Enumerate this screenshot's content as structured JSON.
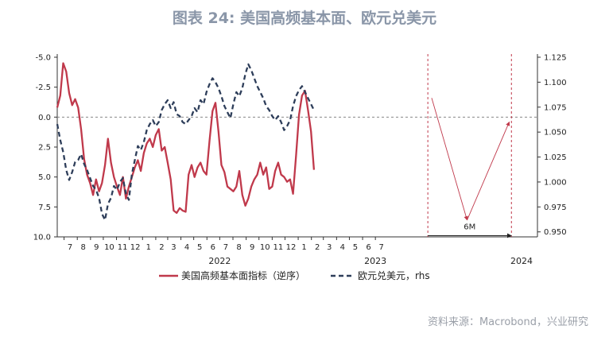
{
  "title": "图表 24: 美国高频基本面、欧元兑美元",
  "source": "资料来源：Macrobond，兴业研究",
  "chart_data": {
    "type": "line",
    "title": "图表 24: 美国高频基本面、欧元兑美元",
    "x_range": [
      "2021-06-15",
      "2024-07-15"
    ],
    "x_ticks": [
      {
        "date": "2021-07-01",
        "label": "7"
      },
      {
        "date": "2021-08-01",
        "label": "8"
      },
      {
        "date": "2021-09-01",
        "label": "9"
      },
      {
        "date": "2021-10-01",
        "label": "10"
      },
      {
        "date": "2021-11-01",
        "label": "11"
      },
      {
        "date": "2021-12-01",
        "label": "12"
      },
      {
        "date": "2022-01-01",
        "label": "1"
      },
      {
        "date": "2022-02-01",
        "label": "2"
      },
      {
        "date": "2022-03-01",
        "label": "3"
      },
      {
        "date": "2022-04-01",
        "label": "4"
      },
      {
        "date": "2022-05-01",
        "label": "5"
      },
      {
        "date": "2022-06-01",
        "label": "6"
      },
      {
        "date": "2022-07-01",
        "label": "7"
      },
      {
        "date": "2022-08-01",
        "label": "8"
      },
      {
        "date": "2022-09-01",
        "label": "9"
      },
      {
        "date": "2022-10-01",
        "label": "10"
      },
      {
        "date": "2022-11-01",
        "label": "11"
      },
      {
        "date": "2022-12-01",
        "label": "12"
      },
      {
        "date": "2023-01-01",
        "label": "1"
      },
      {
        "date": "2023-02-01",
        "label": "2"
      },
      {
        "date": "2023-03-01",
        "label": "3"
      },
      {
        "date": "2023-04-01",
        "label": "4"
      },
      {
        "date": "2023-05-01",
        "label": "5"
      },
      {
        "date": "2023-06-01",
        "label": "6"
      },
      {
        "date": "2023-07-01",
        "label": "7"
      }
    ],
    "year_labels": [
      {
        "date": "2022-01-01",
        "label": "2022"
      },
      {
        "date": "2023-01-01",
        "label": "2023"
      },
      {
        "date": "2024-01-01",
        "label": "2024"
      }
    ],
    "left_axis": {
      "range": [
        10.0,
        -5.0
      ],
      "reversed": true,
      "ticks": [
        "-5.0",
        "-2.5",
        "0.0",
        "2.5",
        "5.0",
        "7.5",
        "10.0"
      ],
      "tick_values": [
        -5,
        -2.5,
        0,
        2.5,
        5,
        7.5,
        10
      ]
    },
    "right_axis": {
      "range": [
        0.945,
        1.125
      ],
      "ticks": [
        "1.125",
        "1.100",
        "1.075",
        "1.050",
        "1.025",
        "1.000",
        "0.975",
        "0.950"
      ],
      "tick_values": [
        1.125,
        1.1,
        1.075,
        1.05,
        1.025,
        1.0,
        0.975,
        0.95
      ]
    },
    "zero_line": 0,
    "vertical_markers": [
      "2023-11-01",
      "2024-05-15"
    ],
    "annotation": {
      "label": "6M",
      "from": "2023-11-01",
      "to": "2024-05-15",
      "level": 9.9
    },
    "trend_arrows": [
      {
        "from": [
          "2023-11-10",
          -1.6
        ],
        "to": [
          "2024-02-01",
          8.6
        ]
      },
      {
        "from": [
          "2024-02-01",
          8.6
        ],
        "to": [
          "2024-05-10",
          0.4
        ]
      }
    ],
    "series": [
      {
        "name": "美国高频基本面指标（逆序）",
        "axis": "left",
        "color": "#c0394b",
        "style": "solid",
        "points": [
          [
            "2021-06-15",
            -0.8
          ],
          [
            "2021-06-22",
            -1.8
          ],
          [
            "2021-06-29",
            -4.5
          ],
          [
            "2021-07-06",
            -3.8
          ],
          [
            "2021-07-13",
            -2.0
          ],
          [
            "2021-07-20",
            -1.0
          ],
          [
            "2021-07-27",
            -1.5
          ],
          [
            "2021-08-03",
            -0.8
          ],
          [
            "2021-08-10",
            1.0
          ],
          [
            "2021-08-17",
            3.5
          ],
          [
            "2021-08-24",
            4.8
          ],
          [
            "2021-08-31",
            5.5
          ],
          [
            "2021-09-07",
            6.5
          ],
          [
            "2021-09-14",
            5.2
          ],
          [
            "2021-09-21",
            6.2
          ],
          [
            "2021-09-28",
            5.5
          ],
          [
            "2021-10-05",
            4.0
          ],
          [
            "2021-10-12",
            1.8
          ],
          [
            "2021-10-19",
            3.8
          ],
          [
            "2021-10-26",
            5.0
          ],
          [
            "2021-11-02",
            5.8
          ],
          [
            "2021-11-09",
            6.5
          ],
          [
            "2021-11-16",
            5.0
          ],
          [
            "2021-11-23",
            6.8
          ],
          [
            "2021-11-30",
            5.8
          ],
          [
            "2021-12-07",
            5.0
          ],
          [
            "2021-12-14",
            4.2
          ],
          [
            "2021-12-21",
            3.6
          ],
          [
            "2021-12-28",
            4.5
          ],
          [
            "2022-01-04",
            3.0
          ],
          [
            "2022-01-11",
            2.2
          ],
          [
            "2022-01-18",
            1.8
          ],
          [
            "2022-01-25",
            2.5
          ],
          [
            "2022-02-01",
            1.5
          ],
          [
            "2022-02-08",
            1.0
          ],
          [
            "2022-02-15",
            2.8
          ],
          [
            "2022-02-22",
            2.5
          ],
          [
            "2022-03-01",
            3.8
          ],
          [
            "2022-03-08",
            5.2
          ],
          [
            "2022-03-15",
            7.8
          ],
          [
            "2022-03-22",
            8.0
          ],
          [
            "2022-03-29",
            7.6
          ],
          [
            "2022-04-05",
            7.8
          ],
          [
            "2022-04-12",
            7.9
          ],
          [
            "2022-04-19",
            4.8
          ],
          [
            "2022-04-26",
            4.0
          ],
          [
            "2022-05-03",
            5.0
          ],
          [
            "2022-05-10",
            4.2
          ],
          [
            "2022-05-17",
            3.8
          ],
          [
            "2022-05-24",
            4.5
          ],
          [
            "2022-05-31",
            4.8
          ],
          [
            "2022-06-07",
            2.0
          ],
          [
            "2022-06-14",
            -0.5
          ],
          [
            "2022-06-21",
            -1.2
          ],
          [
            "2022-06-28",
            1.2
          ],
          [
            "2022-07-05",
            4.0
          ],
          [
            "2022-07-12",
            4.6
          ],
          [
            "2022-07-19",
            5.8
          ],
          [
            "2022-07-26",
            6.0
          ],
          [
            "2022-08-02",
            6.2
          ],
          [
            "2022-08-09",
            5.8
          ],
          [
            "2022-08-16",
            4.5
          ],
          [
            "2022-08-23",
            6.5
          ],
          [
            "2022-08-30",
            7.4
          ],
          [
            "2022-09-06",
            6.8
          ],
          [
            "2022-09-13",
            5.8
          ],
          [
            "2022-09-20",
            5.2
          ],
          [
            "2022-09-27",
            4.8
          ],
          [
            "2022-10-04",
            3.8
          ],
          [
            "2022-10-11",
            4.8
          ],
          [
            "2022-10-18",
            4.2
          ],
          [
            "2022-10-25",
            6.0
          ],
          [
            "2022-11-01",
            5.8
          ],
          [
            "2022-11-08",
            4.5
          ],
          [
            "2022-11-15",
            3.8
          ],
          [
            "2022-11-22",
            4.8
          ],
          [
            "2022-11-29",
            5.0
          ],
          [
            "2022-12-06",
            5.4
          ],
          [
            "2022-12-13",
            5.2
          ],
          [
            "2022-12-20",
            6.4
          ],
          [
            "2022-12-27",
            3.2
          ],
          [
            "2023-01-03",
            -0.2
          ],
          [
            "2023-01-10",
            -1.8
          ],
          [
            "2023-01-17",
            -2.2
          ],
          [
            "2023-01-24",
            -0.6
          ],
          [
            "2023-01-31",
            1.2
          ],
          [
            "2023-02-07",
            4.4
          ]
        ]
      },
      {
        "name": "欧元兑美元，rhs",
        "axis": "right",
        "color": "#2e3e5a",
        "style": "dashed",
        "points": [
          [
            "2021-06-15",
            1.058
          ],
          [
            "2021-06-22",
            1.042
          ],
          [
            "2021-06-29",
            1.03
          ],
          [
            "2021-07-06",
            1.012
          ],
          [
            "2021-07-13",
            1.002
          ],
          [
            "2021-07-20",
            1.01
          ],
          [
            "2021-07-27",
            1.02
          ],
          [
            "2021-08-03",
            1.022
          ],
          [
            "2021-08-10",
            1.028
          ],
          [
            "2021-08-17",
            1.018
          ],
          [
            "2021-08-24",
            1.012
          ],
          [
            "2021-08-31",
            1.004
          ],
          [
            "2021-09-07",
            0.996
          ],
          [
            "2021-09-14",
            0.992
          ],
          [
            "2021-09-21",
            0.984
          ],
          [
            "2021-09-28",
            0.968
          ],
          [
            "2021-10-05",
            0.962
          ],
          [
            "2021-10-12",
            0.978
          ],
          [
            "2021-10-19",
            0.984
          ],
          [
            "2021-10-26",
            0.996
          ],
          [
            "2021-11-02",
            0.992
          ],
          [
            "2021-11-09",
            1.0
          ],
          [
            "2021-11-16",
            1.004
          ],
          [
            "2021-11-23",
            0.988
          ],
          [
            "2021-11-30",
            0.982
          ],
          [
            "2021-12-07",
            1.008
          ],
          [
            "2021-12-14",
            1.022
          ],
          [
            "2021-12-21",
            1.036
          ],
          [
            "2021-12-28",
            1.032
          ],
          [
            "2022-01-04",
            1.04
          ],
          [
            "2022-01-11",
            1.052
          ],
          [
            "2022-01-18",
            1.058
          ],
          [
            "2022-01-25",
            1.062
          ],
          [
            "2022-02-01",
            1.056
          ],
          [
            "2022-02-08",
            1.06
          ],
          [
            "2022-02-15",
            1.072
          ],
          [
            "2022-02-22",
            1.078
          ],
          [
            "2022-03-01",
            1.082
          ],
          [
            "2022-03-08",
            1.074
          ],
          [
            "2022-03-15",
            1.08
          ],
          [
            "2022-03-22",
            1.068
          ],
          [
            "2022-03-29",
            1.066
          ],
          [
            "2022-04-05",
            1.06
          ],
          [
            "2022-04-12",
            1.058
          ],
          [
            "2022-04-19",
            1.062
          ],
          [
            "2022-04-26",
            1.066
          ],
          [
            "2022-05-03",
            1.074
          ],
          [
            "2022-05-10",
            1.07
          ],
          [
            "2022-05-17",
            1.082
          ],
          [
            "2022-05-24",
            1.078
          ],
          [
            "2022-05-31",
            1.09
          ],
          [
            "2022-06-07",
            1.098
          ],
          [
            "2022-06-14",
            1.104
          ],
          [
            "2022-06-21",
            1.1
          ],
          [
            "2022-06-28",
            1.094
          ],
          [
            "2022-07-05",
            1.086
          ],
          [
            "2022-07-12",
            1.076
          ],
          [
            "2022-07-19",
            1.07
          ],
          [
            "2022-07-26",
            1.064
          ],
          [
            "2022-08-02",
            1.078
          ],
          [
            "2022-08-09",
            1.09
          ],
          [
            "2022-08-16",
            1.086
          ],
          [
            "2022-08-23",
            1.094
          ],
          [
            "2022-08-30",
            1.108
          ],
          [
            "2022-09-06",
            1.118
          ],
          [
            "2022-09-13",
            1.112
          ],
          [
            "2022-09-20",
            1.104
          ],
          [
            "2022-09-27",
            1.096
          ],
          [
            "2022-10-04",
            1.09
          ],
          [
            "2022-10-11",
            1.084
          ],
          [
            "2022-10-18",
            1.076
          ],
          [
            "2022-10-25",
            1.072
          ],
          [
            "2022-11-01",
            1.066
          ],
          [
            "2022-11-08",
            1.062
          ],
          [
            "2022-11-15",
            1.066
          ],
          [
            "2022-11-22",
            1.06
          ],
          [
            "2022-11-29",
            1.052
          ],
          [
            "2022-12-06",
            1.056
          ],
          [
            "2022-12-13",
            1.062
          ],
          [
            "2022-12-20",
            1.076
          ],
          [
            "2022-12-27",
            1.086
          ],
          [
            "2023-01-03",
            1.092
          ],
          [
            "2023-01-10",
            1.096
          ],
          [
            "2023-01-17",
            1.09
          ],
          [
            "2023-01-24",
            1.084
          ],
          [
            "2023-01-31",
            1.078
          ],
          [
            "2023-02-07",
            1.072
          ]
        ]
      }
    ],
    "legend": {
      "placement": "bottom"
    }
  }
}
